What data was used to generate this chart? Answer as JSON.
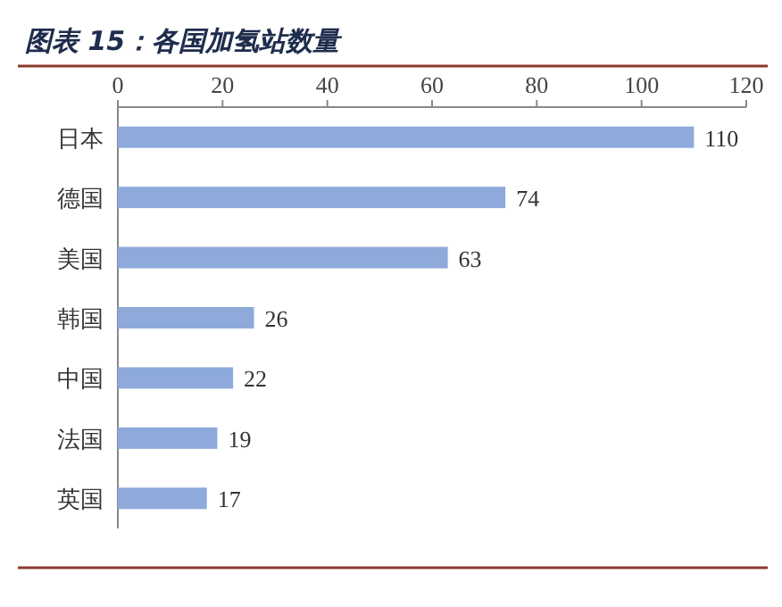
{
  "chart_data": {
    "type": "bar",
    "orientation": "horizontal",
    "title": "图表 15：各国加氢站数量",
    "categories": [
      "日本",
      "德国",
      "美国",
      "韩国",
      "中国",
      "法国",
      "英国"
    ],
    "values": [
      110,
      74,
      63,
      26,
      22,
      19,
      17
    ],
    "color": "#8eaadb",
    "xlim": [
      0,
      120
    ],
    "xticks": [
      0,
      20,
      40,
      60,
      80,
      100,
      120
    ],
    "grid": false,
    "data_labels": true
  }
}
